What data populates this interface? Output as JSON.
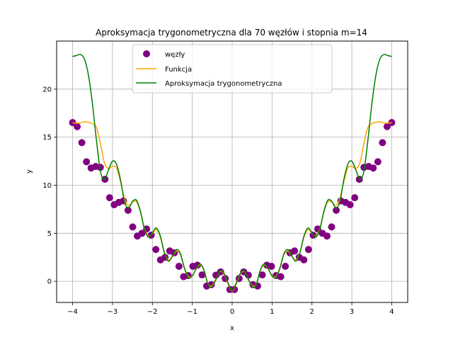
{
  "chart_data": {
    "type": "line",
    "title": "Aproksymacja trygonometryczna dla 70 węzłów i stopnia m=14",
    "xlabel": "x",
    "ylabel": "y",
    "xlim": [
      -4.4,
      4.4
    ],
    "ylim": [
      -2.2,
      25.0
    ],
    "x_ticks": [
      -4,
      -3,
      -2,
      -1,
      0,
      1,
      2,
      3,
      4
    ],
    "x_tick_labels": [
      "−4",
      "−3",
      "−2",
      "−1",
      "0",
      "1",
      "2",
      "3",
      "4"
    ],
    "y_ticks": [
      0,
      5,
      10,
      15,
      20
    ],
    "y_tick_labels": [
      "0",
      "5",
      "10",
      "15",
      "20"
    ],
    "grid": true,
    "legend": {
      "position": "top-center",
      "entries": [
        {
          "label": "węzły",
          "kind": "marker",
          "color": "#800080"
        },
        {
          "label": "Funkcja",
          "kind": "line",
          "color": "#ffa500"
        },
        {
          "label": "Aproksymacja trygonometryczna",
          "kind": "line",
          "color": "#008000"
        }
      ]
    },
    "series": [
      {
        "name": "węzły",
        "kind": "scatter",
        "color": "#800080",
        "x": [
          0.058,
          0.174,
          0.29,
          0.406,
          0.522,
          0.638,
          0.754,
          0.87,
          0.986,
          1.101,
          1.217,
          1.333,
          1.449,
          1.565,
          1.681,
          1.797,
          1.913,
          2.029,
          2.145,
          2.261,
          2.377,
          2.493,
          2.609,
          2.725,
          2.841,
          2.957,
          3.072,
          3.188,
          3.304,
          3.42,
          3.536,
          3.652,
          3.768,
          3.884,
          4.0
        ],
        "y": [
          -0.85,
          0.29,
          0.98,
          0.64,
          -0.35,
          -0.49,
          0.67,
          1.68,
          1.56,
          0.6,
          0.48,
          1.56,
          2.96,
          3.16,
          2.5,
          2.23,
          3.31,
          4.8,
          5.45,
          5.0,
          4.71,
          5.66,
          7.39,
          8.37,
          8.21,
          7.97,
          8.7,
          10.62,
          11.86,
          11.95,
          11.79,
          12.44,
          14.43,
          16.1,
          16.52
        ]
      },
      {
        "name": "Funkcja",
        "kind": "line",
        "color": "#ffa500",
        "function": "x^2 + sin(5x)... sampled (symmetric)",
        "x": [
          0.0,
          0.1,
          0.2,
          0.3,
          0.4,
          0.5,
          0.6,
          0.7,
          0.8,
          0.9,
          1.0,
          1.1,
          1.2,
          1.3,
          1.4,
          1.5,
          1.6,
          1.7,
          1.8,
          1.9,
          2.0,
          2.1,
          2.2,
          2.3,
          2.4,
          2.5,
          2.6,
          2.7,
          2.8,
          2.9,
          3.0,
          3.1,
          3.2,
          3.3,
          3.4,
          3.5,
          3.6,
          3.7,
          3.8,
          3.9,
          4.0
        ],
        "y": [
          -1.0,
          -0.3,
          0.73,
          1.05,
          0.28,
          -0.45,
          -0.35,
          1.05,
          1.72,
          1.3,
          0.58,
          0.5,
          1.48,
          2.8,
          3.15,
          2.58,
          2.22,
          3.02,
          4.6,
          5.4,
          4.99,
          4.7,
          5.52,
          7.22,
          8.3,
          8.24,
          7.9,
          8.62,
          10.4,
          11.8,
          11.98,
          11.74,
          12.3,
          14.3,
          16.0,
          16.4,
          16.55,
          16.6,
          16.5,
          16.45,
          16.52
        ]
      },
      {
        "name": "Aproksymacja trygonometryczna",
        "kind": "line",
        "color": "#008000",
        "x": [
          0.0,
          0.1,
          0.2,
          0.3,
          0.4,
          0.5,
          0.6,
          0.7,
          0.8,
          0.9,
          1.0,
          1.1,
          1.2,
          1.3,
          1.4,
          1.5,
          1.6,
          1.7,
          1.8,
          1.9,
          2.0,
          2.1,
          2.2,
          2.3,
          2.4,
          2.5,
          2.6,
          2.7,
          2.8,
          2.9,
          3.0,
          3.1,
          3.2,
          3.3,
          3.4,
          3.5,
          3.6,
          3.7,
          3.8,
          3.9,
          4.0
        ],
        "y": [
          -0.95,
          -0.2,
          0.8,
          1.1,
          0.25,
          -0.55,
          -0.4,
          1.1,
          1.8,
          1.35,
          0.55,
          0.4,
          1.4,
          2.9,
          3.3,
          2.6,
          2.1,
          3.0,
          4.7,
          5.55,
          5.05,
          4.6,
          5.45,
          7.3,
          8.45,
          8.3,
          7.6,
          8.3,
          10.6,
          12.2,
          12.5,
          11.6,
          10.6,
          11.4,
          14.6,
          18.4,
          21.4,
          23.1,
          23.6,
          23.5,
          23.4
        ]
      }
    ]
  }
}
